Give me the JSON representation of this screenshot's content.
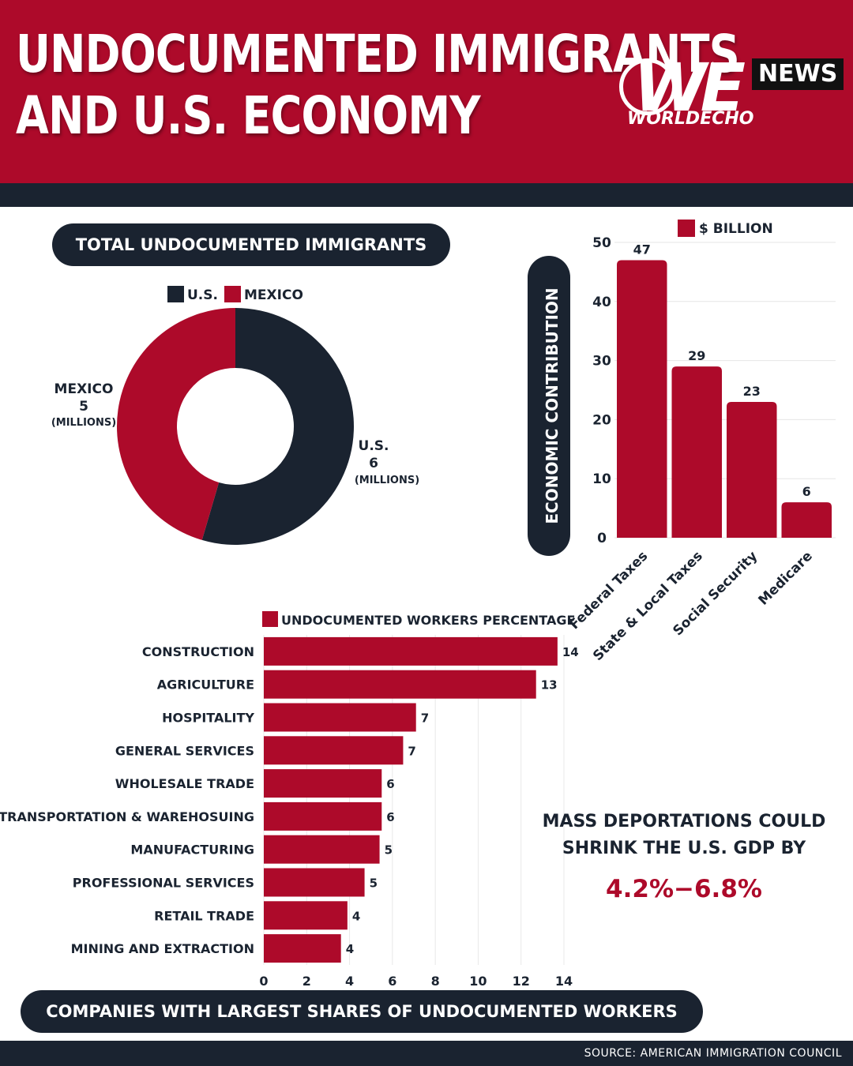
{
  "header": {
    "title_line1": "UNDOCUMENTED IMMIGRANTS",
    "title_line2": "AND U.S. ECONOMY",
    "logo_we": "WE",
    "logo_news": "NEWS",
    "logo_sub": "WORLDECHO"
  },
  "colors": {
    "crimson": "#ad0a2a",
    "navy": "#1a2330",
    "white": "#ffffff"
  },
  "chart_data": [
    {
      "type": "pie",
      "title": "TOTAL UNDOCUMENTED IMMIGRANTS",
      "legend": [
        "U.S.",
        "MEXICO"
      ],
      "slices": [
        {
          "name": "U.S.",
          "value": 6,
          "label_name": "U.S.",
          "label_value": "6",
          "label_unit": "(MILLIONS)",
          "color": "#1a2330"
        },
        {
          "name": "MEXICO",
          "value": 5,
          "label_name": "MEXICO",
          "label_value": "5",
          "label_unit": "(MILLIONS)",
          "color": "#ad0a2a"
        }
      ]
    },
    {
      "type": "bar",
      "ylabel": "ECONOMIC CONTRIBUTION",
      "legend": "$ BILLION",
      "categories": [
        "Federal Taxes",
        "State & Local Taxes",
        "Social Security",
        "Medicare"
      ],
      "values": [
        47,
        29,
        23,
        6
      ],
      "ylim": [
        0,
        50
      ],
      "yticks": [
        0,
        10,
        20,
        30,
        40,
        50
      ],
      "grid": true
    },
    {
      "type": "bar",
      "orientation": "horizontal",
      "legend": "UNDOCUMENTED WORKERS PERCENTAGE",
      "title": "COMPANIES WITH LARGEST SHARES OF UNDOCUMENTED WORKERS",
      "categories": [
        "CONSTRUCTION",
        "AGRICULTURE",
        "HOSPITALITY",
        "GENERAL SERVICES",
        "WHOLESALE TRADE",
        "TRANSPORTATION & WAREHOSUING",
        "MANUFACTURING",
        "PROFESSIONAL SERVICES",
        "RETAIL TRADE",
        "MINING AND EXTRACTION"
      ],
      "values": [
        13.7,
        12.7,
        7.1,
        6.5,
        5.5,
        5.5,
        5.4,
        4.7,
        3.9,
        3.6
      ],
      "data_labels": [
        "14",
        "13",
        "7",
        "7",
        "6",
        "6",
        "5",
        "5",
        "4",
        "4"
      ],
      "xlim": [
        0,
        14
      ],
      "xticks": [
        0,
        2,
        4,
        6,
        8,
        10,
        12,
        14
      ],
      "grid": true
    }
  ],
  "note": {
    "line1": "MASS DEPORTATIONS COULD",
    "line2": "SHRINK THE U.S. GDP BY",
    "value": "4.2%−6.8%"
  },
  "footer": {
    "source": "SOURCE: AMERICAN IMMIGRATION COUNCIL"
  }
}
